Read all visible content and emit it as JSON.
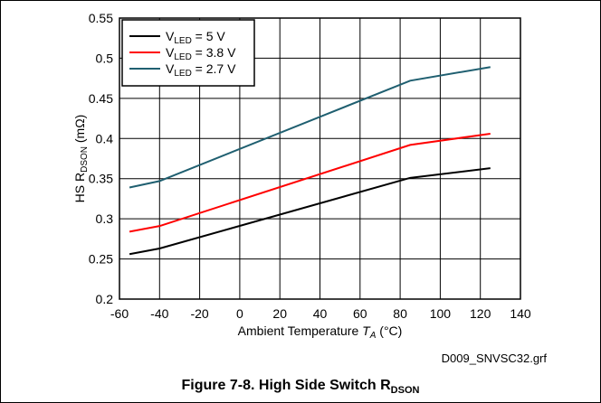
{
  "chart_data": {
    "type": "line",
    "title": "",
    "xlabel": {
      "prefix": "Ambient Temperature ",
      "var": "T",
      "sub": "A",
      "suffix": " (°C)"
    },
    "ylabel": {
      "prefix": "HS R",
      "sub": "DSON",
      "suffix": " (mΩ)"
    },
    "xlim": [
      -60,
      140
    ],
    "ylim": [
      0.2,
      0.55
    ],
    "xticks": [
      "-60",
      "-40",
      "-20",
      "0",
      "20",
      "40",
      "60",
      "80",
      "100",
      "120",
      "140"
    ],
    "yticks": [
      "0.2",
      "0.25",
      "0.3",
      "0.35",
      "0.4",
      "0.45",
      "0.5",
      "0.55"
    ],
    "grid": true,
    "legend_position": "top-left",
    "series": [
      {
        "name": "V_LED = 5 V",
        "legend": {
          "main": "V",
          "sub": "LED",
          "rest": " = 5 V"
        },
        "color": "#000000",
        "x": [
          -55,
          -40,
          85,
          125
        ],
        "y": [
          0.256,
          0.263,
          0.351,
          0.363
        ]
      },
      {
        "name": "V_LED = 3.8 V",
        "legend": {
          "main": "V",
          "sub": "LED",
          "rest": " = 3.8 V"
        },
        "color": "#ff0000",
        "x": [
          -55,
          -40,
          85,
          125
        ],
        "y": [
          0.284,
          0.291,
          0.392,
          0.406
        ]
      },
      {
        "name": "V_LED = 2.7 V",
        "legend": {
          "main": "V",
          "sub": "LED",
          "rest": " = 2.7 V"
        },
        "color": "#1f5f70",
        "x": [
          -55,
          -40,
          85,
          125
        ],
        "y": [
          0.339,
          0.347,
          0.472,
          0.489
        ]
      }
    ]
  },
  "file_note": "D009_SNVSC32.grf",
  "caption": {
    "prefix": "Figure 7-8. High Side Switch R",
    "sub": "DSON"
  }
}
